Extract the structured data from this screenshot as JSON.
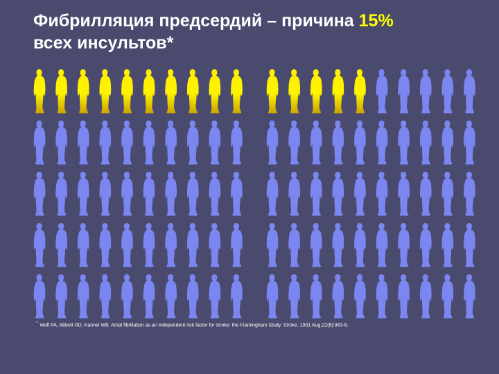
{
  "title": {
    "line1_prefix": "Фибрилляция предсердий – причина ",
    "line1_accent": "15%",
    "line2": "всех инсультов*"
  },
  "grid": {
    "columns_per_group": 10,
    "groups": 2,
    "rows": 5,
    "highlighted_count": 15,
    "highlight_fraction": 0.15,
    "highlight_color": "#ffee00",
    "normal_color": "#7b86f0",
    "icon": "person-silhouette-icon"
  },
  "footnote": {
    "marker": "*",
    "text": "Wolf PA, Abbott RD, Kannel WB. Atrial fibrillation as an independent risk factor for stroke: the Framingham Study. Stroke. 1991 Aug;22(8):983-8."
  },
  "colors": {
    "background": "#4a4a6e",
    "title": "#ffffff",
    "accent": "#ffff00"
  }
}
